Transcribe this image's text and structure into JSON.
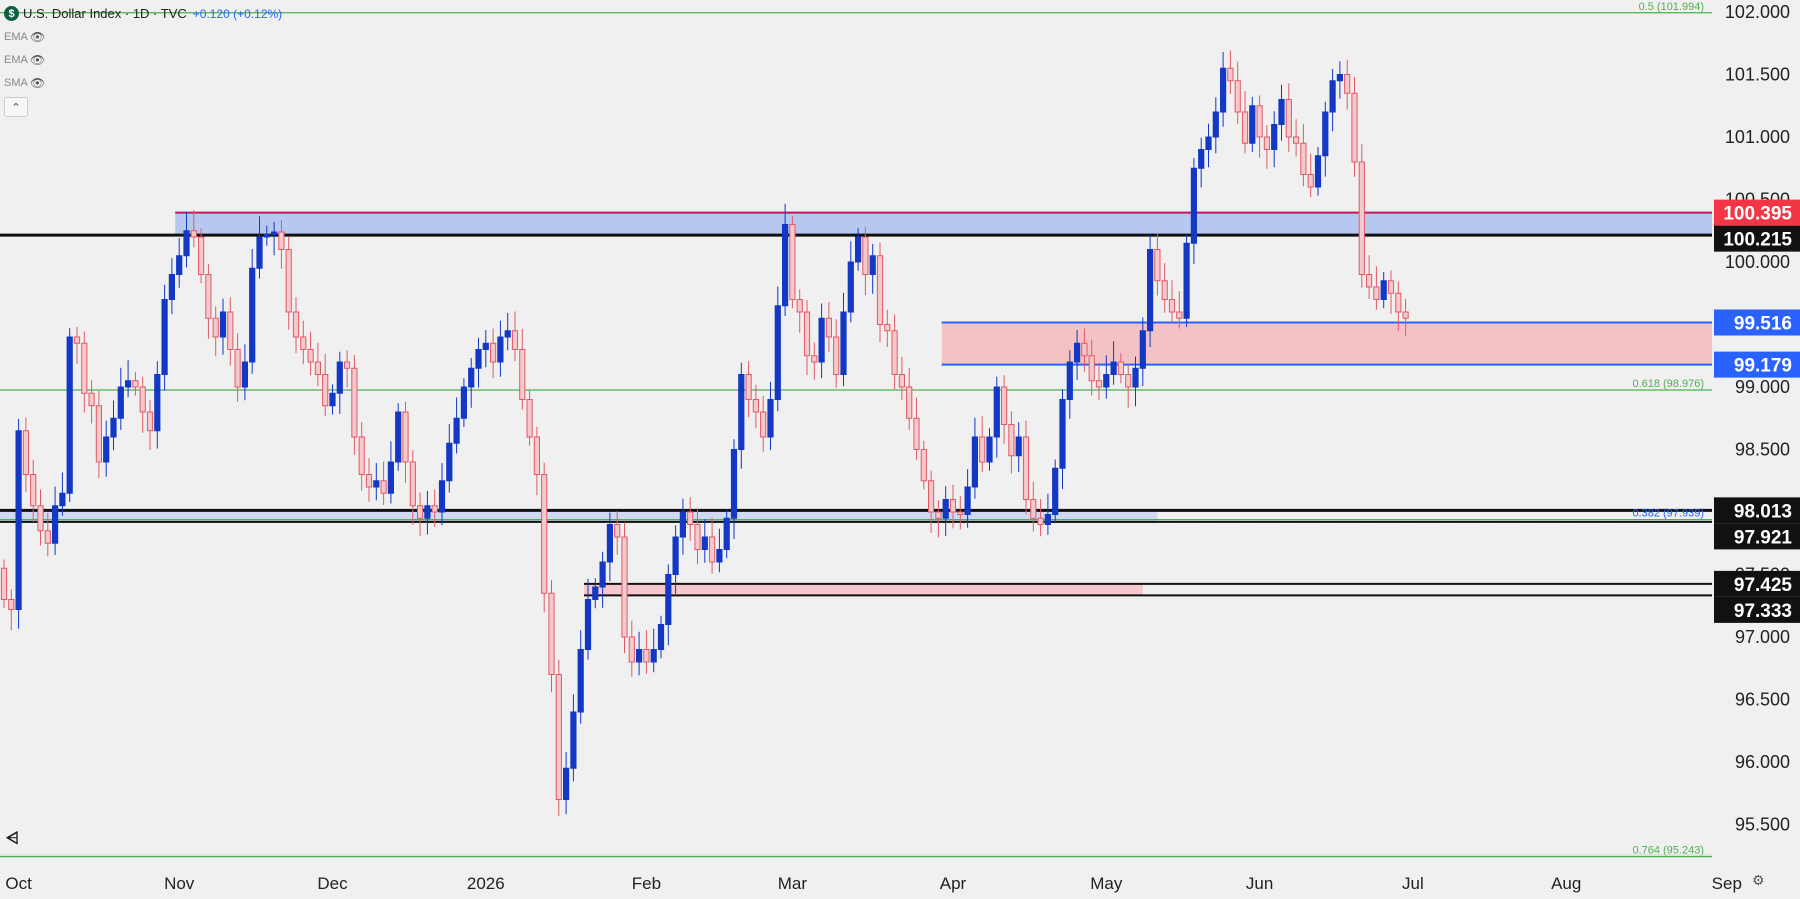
{
  "legend": {
    "symbol_letter": "$",
    "title": "U.S. Dollar Index · 1D · TVC",
    "change": "+0.120 (+0.12%)",
    "indicators": [
      {
        "label": "EMA",
        "icon": "eye-off-icon"
      },
      {
        "label": "EMA",
        "icon": "eye-off-icon"
      },
      {
        "label": "SMA",
        "icon": "eye-off-icon"
      }
    ],
    "collapse_icon": "chevron-up-icon"
  },
  "chart_data": {
    "type": "candlestick",
    "ylim": [
      95.3,
      102.1
    ],
    "xlabels": [
      "Oct",
      "Nov",
      "Dec",
      "2026",
      "Feb",
      "Mar",
      "Apr",
      "May",
      "Jun",
      "Jul",
      "Aug",
      "Sep"
    ],
    "xlabel_bars": [
      2,
      24,
      45,
      66,
      88,
      108,
      130,
      151,
      172,
      193,
      214,
      236
    ],
    "yticks": [
      95.5,
      96.0,
      96.5,
      97.0,
      97.5,
      98.0,
      98.5,
      99.0,
      99.5,
      100.0,
      100.5,
      101.0,
      101.5,
      102.0
    ],
    "ytick_labels": [
      "95.500",
      "96.000",
      "96.500",
      "97.000",
      "97.500",
      "98.000",
      "98.500",
      "99.000",
      "99.500",
      "100.000",
      "100.500",
      "101.000",
      "101.500",
      "102.000"
    ],
    "fib_levels": [
      {
        "label": "0.5 (101.994)",
        "value": 101.994
      },
      {
        "label": "0.618 (98.976)",
        "value": 98.976
      },
      {
        "label": "0.382 (97.939)",
        "value": 97.939
      },
      {
        "label": "0.764 (95.243)",
        "value": 95.243
      }
    ],
    "zones": [
      {
        "name": "resistance",
        "from": 100.215,
        "to": 100.395,
        "start_bar": 24,
        "color": "#b6c7f0",
        "edge": "#c2185b"
      },
      {
        "name": "support",
        "from": 99.179,
        "to": 99.516,
        "start_bar": 129,
        "color": "#f3c2c5",
        "edge": "#2962ff"
      },
      {
        "name": "lower-support",
        "from": 97.921,
        "to": 98.013,
        "start_bar": 0,
        "end_bar": 158,
        "color": "#cfd9f3",
        "edge": "#111111"
      },
      {
        "name": "bottom-support",
        "from": 97.333,
        "to": 97.425,
        "start_bar": 80,
        "end_bar": 156,
        "color": "#f6c8cd",
        "edge": "#111111"
      }
    ],
    "price_labels": [
      {
        "value": 100.395,
        "text": "100.395",
        "bg": "#f23645",
        "fg": "#ffffff"
      },
      {
        "value": 100.215,
        "text": "100.215",
        "bg": "#111111",
        "fg": "#ffffff"
      },
      {
        "value": 99.516,
        "text": "99.516",
        "bg": "#2962ff",
        "fg": "#ffffff"
      },
      {
        "value": 99.179,
        "text": "99.179",
        "bg": "#2962ff",
        "fg": "#ffffff"
      },
      {
        "value": 98.013,
        "text": "98.013",
        "bg": "#111111",
        "fg": "#ffffff"
      },
      {
        "value": 97.921,
        "text": "97.921",
        "bg": "#111111",
        "fg": "#ffffff"
      },
      {
        "value": 97.425,
        "text": "97.425",
        "bg": "#111111",
        "fg": "#ffffff"
      },
      {
        "value": 97.333,
        "text": "97.333",
        "bg": "#111111",
        "fg": "#ffffff"
      }
    ],
    "up_color": "#1238c4",
    "down_color": "#e05a66",
    "closes": [
      97.3,
      97.22,
      98.65,
      98.3,
      98.05,
      97.85,
      97.75,
      98.05,
      98.15,
      99.4,
      99.35,
      98.95,
      98.85,
      98.4,
      98.6,
      98.75,
      99.0,
      99.05,
      99.0,
      98.8,
      98.65,
      99.1,
      99.7,
      99.9,
      100.05,
      100.25,
      100.2,
      99.9,
      99.55,
      99.4,
      99.6,
      99.3,
      99.0,
      99.2,
      99.95,
      100.2,
      100.22,
      100.24,
      100.1,
      99.6,
      99.4,
      99.3,
      99.2,
      99.1,
      98.85,
      98.95,
      99.2,
      99.15,
      98.6,
      98.3,
      98.2,
      98.25,
      98.15,
      98.4,
      98.8,
      98.4,
      98.05,
      97.95,
      98.05,
      98.0,
      98.25,
      98.55,
      98.75,
      99.0,
      99.15,
      99.3,
      99.35,
      99.2,
      99.4,
      99.45,
      99.3,
      98.9,
      98.6,
      98.3,
      97.35,
      96.7,
      95.7,
      95.95,
      96.4,
      96.9,
      97.3,
      97.4,
      97.6,
      97.9,
      97.8,
      97.0,
      96.8,
      96.9,
      96.8,
      96.9,
      97.1,
      97.5,
      97.8,
      98.0,
      97.9,
      97.7,
      97.8,
      97.6,
      97.7,
      97.95,
      98.5,
      99.1,
      98.9,
      98.8,
      98.6,
      98.9,
      99.65,
      100.3,
      99.7,
      99.6,
      99.25,
      99.2,
      99.55,
      99.4,
      99.1,
      99.6,
      100.0,
      100.2,
      99.9,
      100.05,
      99.5,
      99.45,
      99.1,
      99.0,
      98.75,
      98.5,
      98.25,
      98.0,
      97.95,
      98.1,
      98.0,
      97.98,
      98.2,
      98.6,
      98.4,
      98.6,
      99.0,
      98.7,
      98.45,
      98.6,
      98.1,
      97.95,
      97.9,
      97.98,
      98.35,
      98.9,
      99.2,
      99.35,
      99.25,
      99.05,
      99.0,
      99.1,
      99.2,
      99.1,
      99.0,
      99.15,
      99.45,
      100.1,
      99.85,
      99.7,
      99.6,
      99.55,
      100.15,
      100.75,
      100.9,
      101.0,
      101.2,
      101.55,
      101.45,
      101.2,
      100.95,
      101.25,
      101.0,
      100.9,
      101.1,
      101.3,
      101.0,
      100.95,
      100.7,
      100.6,
      100.85,
      101.2,
      101.45,
      101.5,
      101.35,
      100.8,
      99.9,
      99.8,
      99.7,
      99.85,
      99.75,
      99.6,
      99.55
    ]
  }
}
